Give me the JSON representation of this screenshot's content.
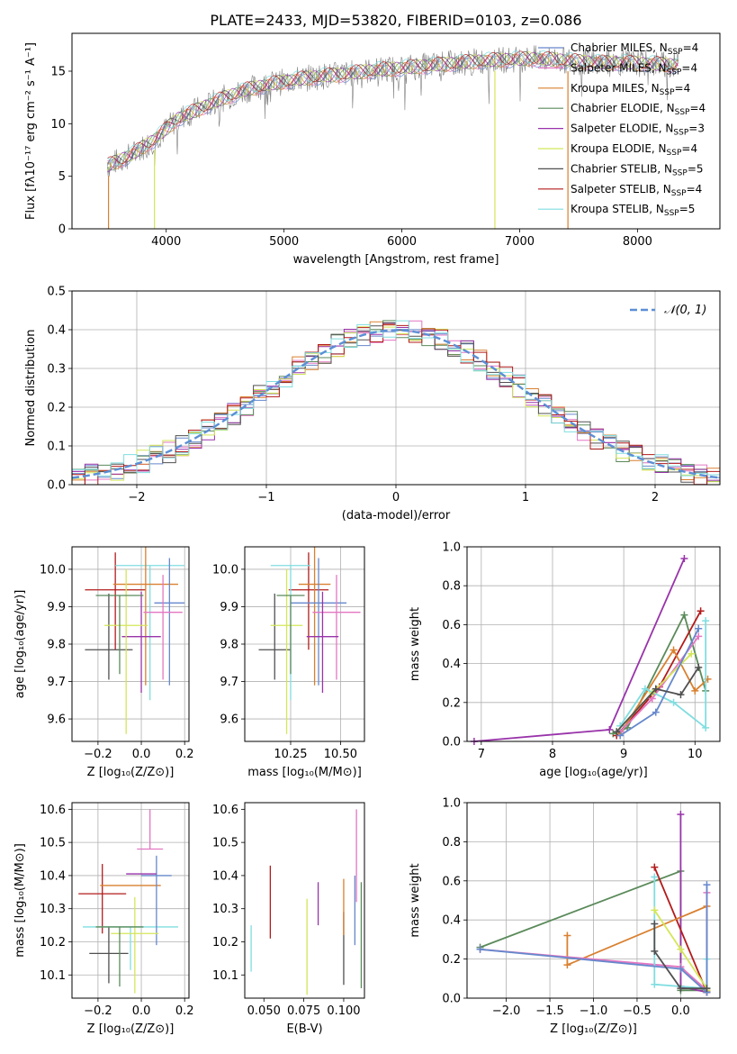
{
  "figure_title": "PLATE=2433, MJD=53820, FIBERID=0103, z=0.086",
  "chart_data": [
    {
      "type": "line",
      "name": "spectrum",
      "xlabel": "wavelength [Angstrom, rest frame]",
      "ylabel": "Flux [fλ10⁻¹⁷ erg cm⁻² s⁻¹ A⁻¹]",
      "xlim": [
        3200,
        8700
      ],
      "ylim": [
        0,
        18.6
      ],
      "xticks": [
        4000,
        5000,
        6000,
        7000,
        8000
      ],
      "yticks": [
        0,
        5,
        10,
        15
      ],
      "grid": false,
      "legend_position": "upper-right",
      "observed_color": "#808080",
      "x": [
        3500,
        3700,
        3900,
        4100,
        4300,
        4500,
        4700,
        4900,
        5100,
        5300,
        5500,
        5700,
        5900,
        6100,
        6300,
        6500,
        6700,
        6900,
        7100,
        7300,
        7500,
        7700,
        7900,
        8100,
        8300
      ],
      "y": [
        6.0,
        7.0,
        8.5,
        10.5,
        11.5,
        12.5,
        13.3,
        13.8,
        14.2,
        14.5,
        14.7,
        15.0,
        15.2,
        15.4,
        15.6,
        15.8,
        16.0,
        16.1,
        16.2,
        16.1,
        15.9,
        15.8,
        15.8,
        15.7,
        15.6
      ],
      "legend": [
        {
          "label": "Chabrier MILES, N",
          "sub": "SSP",
          "val": "=4",
          "color": "#6688cc"
        },
        {
          "label": "Salpeter MILES, N",
          "sub": "SSP",
          "val": "=4",
          "color": "#e377c2"
        },
        {
          "label": "Kroupa MILES, N",
          "sub": "SSP",
          "val": "=4",
          "color": "#d98030"
        },
        {
          "label": "Chabrier ELODIE, N",
          "sub": "SSP",
          "val": "=4",
          "color": "#5a8a5a"
        },
        {
          "label": "Salpeter ELODIE, N",
          "sub": "SSP",
          "val": "=3",
          "color": "#9933aa"
        },
        {
          "label": "Kroupa ELODIE, N",
          "sub": "SSP",
          "val": "=4",
          "color": "#d4e65a"
        },
        {
          "label": "Chabrier STELIB, N",
          "sub": "SSP",
          "val": "=5",
          "color": "#505050"
        },
        {
          "label": "Salpeter STELIB, N",
          "sub": "SSP",
          "val": "=4",
          "color": "#b31b1b"
        },
        {
          "label": "Kroupa STELIB, N",
          "sub": "SSP",
          "val": "=5",
          "color": "#80dde0"
        }
      ]
    },
    {
      "type": "line",
      "name": "residual-distribution",
      "xlabel": "(data-model)/error",
      "ylabel": "Normed distribution",
      "xlim": [
        -2.5,
        2.5
      ],
      "ylim": [
        0,
        0.5
      ],
      "xticks": [
        -2,
        -1,
        0,
        1,
        2
      ],
      "yticks": [
        0.0,
        0.1,
        0.2,
        0.3,
        0.4,
        0.5
      ],
      "grid": true,
      "legend_position": "upper-right",
      "series": [
        {
          "name": "𝒩(0, 1)",
          "color": "#5b8fd6",
          "style": "dashed",
          "type": "normal",
          "mu": 0,
          "sigma": 1
        }
      ]
    },
    {
      "type": "scatter",
      "name": "age-vs-Z",
      "xlabel": "Z [log₁₀(Z/Z⊙)]",
      "ylabel": "age  [log₁₀(age/yr)]",
      "xlim": [
        -0.32,
        0.22
      ],
      "ylim": [
        9.54,
        10.06
      ],
      "xticks": [
        -0.2,
        0.0,
        0.2
      ],
      "yticks": [
        9.6,
        9.7,
        9.8,
        9.9,
        10.0
      ],
      "grid": true,
      "points": [
        {
          "x": -0.12,
          "y": 9.945,
          "xerr": 0.14,
          "yerr": [
            0.16,
            0.1
          ],
          "color": "#b31b1b"
        },
        {
          "x": -0.15,
          "y": 9.785,
          "xerr": 0.11,
          "yerr": [
            0.08,
            0.15
          ],
          "color": "#505050"
        },
        {
          "x": 0.04,
          "y": 10.01,
          "xerr": 0.16,
          "yerr": [
            0.36,
            0.0
          ],
          "color": "#80dde0"
        },
        {
          "x": 0.02,
          "y": 9.96,
          "xerr": 0.15,
          "yerr": [
            0.27,
            0.11
          ],
          "color": "#d98030"
        },
        {
          "x": 0.13,
          "y": 9.91,
          "xerr": 0.07,
          "yerr": [
            0.22,
            0.12
          ],
          "color": "#6688cc"
        },
        {
          "x": 0.1,
          "y": 9.885,
          "xerr": 0.09,
          "yerr": [
            0.18,
            0.1
          ],
          "color": "#e377c2"
        },
        {
          "x": 0.0,
          "y": 9.82,
          "xerr": 0.09,
          "yerr": [
            0.15,
            0.12
          ],
          "color": "#9933aa"
        },
        {
          "x": -0.07,
          "y": 9.85,
          "xerr": 0.1,
          "yerr": [
            0.29,
            0.15
          ],
          "color": "#d4e65a"
        },
        {
          "x": -0.1,
          "y": 9.93,
          "xerr": 0.11,
          "yerr": [
            0.21,
            0.0
          ],
          "color": "#5a8a5a"
        }
      ]
    },
    {
      "type": "scatter",
      "name": "age-vs-mass",
      "xlabel": "mass [log₁₀(M/M⊙)]",
      "ylabel": "",
      "xlim": [
        10.02,
        10.62
      ],
      "ylim": [
        9.54,
        10.06
      ],
      "xticks": [
        10.25,
        10.5
      ],
      "yticks": [
        9.6,
        9.7,
        9.8,
        9.9,
        10.0
      ],
      "grid": true,
      "points": [
        {
          "x": 10.34,
          "y": 9.945,
          "xerr": 0.1,
          "yerr": [
            0.16,
            0.1
          ],
          "color": "#b31b1b"
        },
        {
          "x": 10.17,
          "y": 9.785,
          "xerr": 0.08,
          "yerr": [
            0.08,
            0.15
          ],
          "color": "#505050"
        },
        {
          "x": 10.25,
          "y": 10.01,
          "xerr": 0.1,
          "yerr": [
            0.36,
            0.0
          ],
          "color": "#80dde0"
        },
        {
          "x": 10.37,
          "y": 9.96,
          "xerr": 0.08,
          "yerr": [
            0.27,
            0.11
          ],
          "color": "#d98030"
        },
        {
          "x": 10.39,
          "y": 9.91,
          "xerr": 0.14,
          "yerr": [
            0.22,
            0.12
          ],
          "color": "#6688cc"
        },
        {
          "x": 10.48,
          "y": 9.885,
          "xerr": 0.12,
          "yerr": [
            0.18,
            0.1
          ],
          "color": "#e377c2"
        },
        {
          "x": 10.41,
          "y": 9.82,
          "xerr": 0.08,
          "yerr": [
            0.15,
            0.12
          ],
          "color": "#9933aa"
        },
        {
          "x": 10.23,
          "y": 9.85,
          "xerr": 0.08,
          "yerr": [
            0.29,
            0.15
          ],
          "color": "#d4e65a"
        },
        {
          "x": 10.25,
          "y": 9.93,
          "xerr": 0.07,
          "yerr": [
            0.21,
            0.0
          ],
          "color": "#5a8a5a"
        }
      ]
    },
    {
      "type": "line",
      "name": "mass-weight-vs-age",
      "xlabel": "age  [log₁₀(age/yr)]",
      "ylabel": "mass weight",
      "xlim": [
        6.8,
        10.35
      ],
      "ylim": [
        0,
        1.0
      ],
      "xticks": [
        7,
        8,
        9,
        10
      ],
      "yticks": [
        0.0,
        0.2,
        0.4,
        0.6,
        0.8,
        1.0
      ],
      "grid": true,
      "series": [
        {
          "color": "#9933aa",
          "x": [
            6.9,
            8.8,
            9.85
          ],
          "y": [
            0.0,
            0.06,
            0.94
          ]
        },
        {
          "color": "#5a8a5a",
          "x": [
            8.85,
            9.05,
            9.85,
            10.15
          ],
          "y": [
            0.04,
            0.07,
            0.65,
            0.26
          ]
        },
        {
          "color": "#b31b1b",
          "x": [
            8.9,
            9.5,
            10.08
          ],
          "y": [
            0.03,
            0.28,
            0.67
          ]
        },
        {
          "color": "#d98030",
          "x": [
            8.95,
            9.7,
            10.0,
            10.18
          ],
          "y": [
            0.04,
            0.47,
            0.26,
            0.32
          ]
        },
        {
          "color": "#e377c2",
          "x": [
            8.95,
            9.4,
            10.05
          ],
          "y": [
            0.05,
            0.22,
            0.54
          ]
        },
        {
          "color": "#80dde0",
          "x": [
            8.95,
            9.3,
            9.7,
            10.15,
            10.15
          ],
          "y": [
            0.08,
            0.27,
            0.2,
            0.07,
            0.62
          ]
        },
        {
          "color": "#d4e65a",
          "x": [
            8.9,
            9.4,
            9.95
          ],
          "y": [
            0.05,
            0.25,
            0.45
          ]
        },
        {
          "color": "#6688cc",
          "x": [
            8.95,
            9.45,
            10.05
          ],
          "y": [
            0.03,
            0.15,
            0.58
          ]
        },
        {
          "color": "#505050",
          "x": [
            8.9,
            9.45,
            9.8,
            10.05
          ],
          "y": [
            0.05,
            0.27,
            0.24,
            0.38
          ]
        }
      ]
    },
    {
      "type": "scatter",
      "name": "mass-vs-Z",
      "xlabel": "Z [log₁₀(Z/Z⊙)]",
      "ylabel": "mass [log₁₀(M/M⊙)]",
      "xlim": [
        -0.32,
        0.22
      ],
      "ylim": [
        10.03,
        10.62
      ],
      "xticks": [
        -0.2,
        0.0,
        0.2
      ],
      "yticks": [
        10.1,
        10.2,
        10.3,
        10.4,
        10.5,
        10.6
      ],
      "grid": true,
      "points": [
        {
          "x": -0.18,
          "y": 10.345,
          "xerr": 0.11,
          "yerr": [
            0.12,
            0.09
          ],
          "color": "#b31b1b"
        },
        {
          "x": -0.15,
          "y": 10.165,
          "xerr": 0.09,
          "yerr": [
            0.09,
            0.08
          ],
          "color": "#505050"
        },
        {
          "x": -0.05,
          "y": 10.245,
          "xerr": 0.22,
          "yerr": [
            0.13,
            0.0
          ],
          "color": "#80dde0"
        },
        {
          "x": -0.05,
          "y": 10.37,
          "xerr": 0.14,
          "yerr": [
            0.0,
            0.0
          ],
          "color": "#d98030"
        },
        {
          "x": 0.07,
          "y": 10.4,
          "xerr": 0.07,
          "yerr": [
            0.21,
            0.06
          ],
          "color": "#6688cc"
        },
        {
          "x": 0.04,
          "y": 10.48,
          "xerr": 0.06,
          "yerr": [
            0.0,
            0.12
          ],
          "color": "#e377c2"
        },
        {
          "x": 0.0,
          "y": 10.405,
          "xerr": 0.07,
          "yerr": [
            0.0,
            0.0
          ],
          "color": "#9933aa"
        },
        {
          "x": -0.03,
          "y": 10.225,
          "xerr": 0.11,
          "yerr": [
            0.18,
            0.11
          ],
          "color": "#d4e65a"
        },
        {
          "x": -0.1,
          "y": 10.245,
          "xerr": 0.11,
          "yerr": [
            0.18,
            0.0
          ],
          "color": "#5a8a5a"
        }
      ]
    },
    {
      "type": "scatter",
      "name": "mass-vs-ebv",
      "xlabel": "E(B-V)",
      "ylabel": "",
      "xlim": [
        0.038,
        0.113
      ],
      "ylim": [
        10.03,
        10.62
      ],
      "xticks": [
        0.05,
        0.075,
        0.1
      ],
      "yticks": [
        10.1,
        10.2,
        10.3,
        10.4,
        10.5,
        10.6
      ],
      "grid": false,
      "points": [
        {
          "x": 0.054,
          "y": 10.32,
          "yerr": [
            0.11,
            0.11
          ],
          "color": "#b31b1b"
        },
        {
          "x": 0.1,
          "y": 10.18,
          "yerr": [
            0.11,
            0.11
          ],
          "color": "#505050"
        },
        {
          "x": 0.042,
          "y": 10.19,
          "yerr": [
            0.08,
            0.06
          ],
          "color": "#80dde0"
        },
        {
          "x": 0.1,
          "y": 10.32,
          "yerr": [
            0.1,
            0.07
          ],
          "color": "#d98030"
        },
        {
          "x": 0.107,
          "y": 10.3,
          "yerr": [
            0.11,
            0.1
          ],
          "color": "#6688cc"
        },
        {
          "x": 0.108,
          "y": 10.45,
          "yerr": [
            0.13,
            0.15
          ],
          "color": "#e377c2"
        },
        {
          "x": 0.084,
          "y": 10.31,
          "yerr": [
            0.06,
            0.07
          ],
          "color": "#9933aa"
        },
        {
          "x": 0.077,
          "y": 10.19,
          "yerr": [
            0.15,
            0.14
          ],
          "color": "#d4e65a"
        },
        {
          "x": 0.111,
          "y": 10.22,
          "yerr": [
            0.16,
            0.16
          ],
          "color": "#5a8a5a"
        }
      ]
    },
    {
      "type": "line",
      "name": "mass-weight-vs-Z",
      "xlabel": "Z [log₁₀(Z/Z⊙)]",
      "ylabel": "mass weight",
      "xlim": [
        -2.45,
        0.45
      ],
      "ylim": [
        0,
        1.0
      ],
      "xticks": [
        -2.0,
        -1.5,
        -1.0,
        -0.5,
        0.0
      ],
      "yticks": [
        0.0,
        0.2,
        0.4,
        0.6,
        0.8,
        1.0
      ],
      "grid": true,
      "series": [
        {
          "color": "#5a8a5a",
          "x": [
            -2.3,
            0.0,
            0.0,
            0.3
          ],
          "y": [
            0.26,
            0.65,
            0.04,
            0.04
          ]
        },
        {
          "color": "#9933aa",
          "x": [
            0.0,
            0.0,
            0.3
          ],
          "y": [
            0.94,
            0.06,
            0.03
          ]
        },
        {
          "color": "#b31b1b",
          "x": [
            -0.3,
            0.3
          ],
          "y": [
            0.67,
            0.03
          ]
        },
        {
          "color": "#d98030",
          "x": [
            -1.3,
            -1.3,
            0.3,
            0.3
          ],
          "y": [
            0.32,
            0.17,
            0.47,
            0.04
          ]
        },
        {
          "color": "#e377c2",
          "x": [
            -2.3,
            0.0,
            0.3,
            0.3
          ],
          "y": [
            0.25,
            0.16,
            0.04,
            0.54
          ]
        },
        {
          "color": "#80dde0",
          "x": [
            -0.3,
            -0.3,
            0.3,
            0.3
          ],
          "y": [
            0.62,
            0.07,
            0.05,
            0.2
          ]
        },
        {
          "color": "#d4e65a",
          "x": [
            -0.3,
            0.0,
            0.3,
            0.3
          ],
          "y": [
            0.45,
            0.25,
            0.05,
            0.04
          ]
        },
        {
          "color": "#6688cc",
          "x": [
            -2.3,
            0.0,
            0.3,
            0.3
          ],
          "y": [
            0.25,
            0.15,
            0.03,
            0.58
          ]
        },
        {
          "color": "#505050",
          "x": [
            -0.3,
            -0.3,
            0.0,
            0.3
          ],
          "y": [
            0.38,
            0.24,
            0.05,
            0.05
          ]
        }
      ]
    }
  ]
}
